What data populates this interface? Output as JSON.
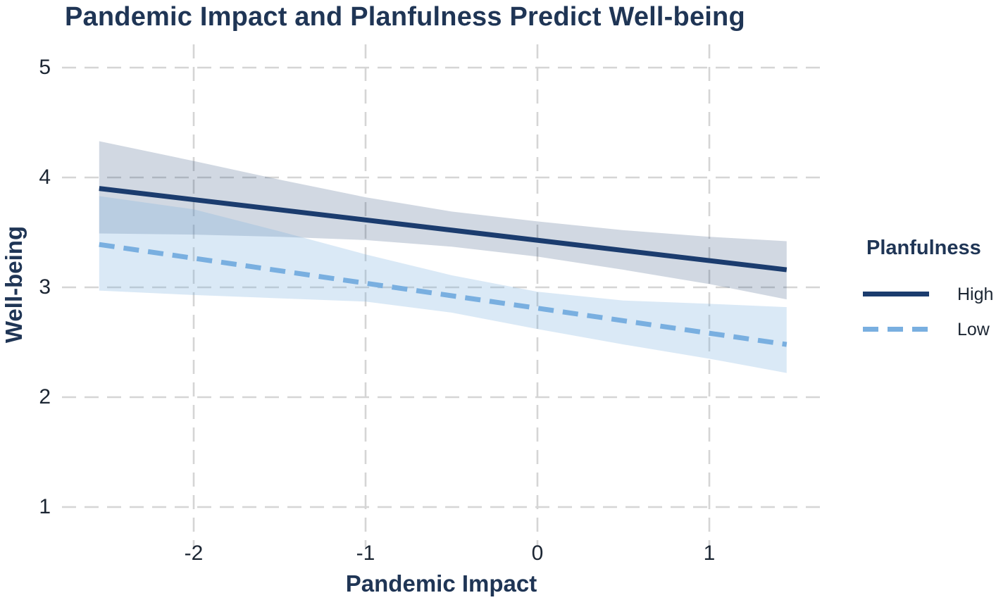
{
  "chart_data": {
    "type": "line",
    "title": "Pandemic Impact and Planfulness Predict Well-being",
    "xlabel": "Pandemic Impact",
    "ylabel": "Well-being",
    "x_ticks": [
      -2,
      -1,
      0,
      1
    ],
    "y_ticks": [
      1,
      2,
      3,
      4,
      5
    ],
    "xlim": [
      -2.77,
      1.65
    ],
    "ylim": [
      0.63,
      5.21
    ],
    "grid": "dashed-both-axes",
    "legend": {
      "title": "Planfulness",
      "position": "right",
      "entries": [
        {
          "label": "High",
          "style": "solid",
          "color": "#1b3c6e"
        },
        {
          "label": "Low",
          "style": "dashed",
          "color": "#79afe0"
        }
      ]
    },
    "series": [
      {
        "name": "High",
        "style": "solid",
        "color": "#1b3c6e",
        "x": [
          -2.55,
          1.45
        ],
        "y": [
          3.9,
          3.16
        ],
        "ci": {
          "fill": "rgba(27,60,110,0.20)",
          "x": [
            -2.55,
            -2,
            -1.5,
            -1,
            -0.5,
            0,
            0.5,
            1,
            1.45
          ],
          "upper": [
            4.33,
            4.15,
            3.98,
            3.82,
            3.69,
            3.6,
            3.52,
            3.46,
            3.42
          ],
          "lower": [
            3.49,
            3.48,
            3.46,
            3.43,
            3.37,
            3.28,
            3.16,
            3.03,
            2.89
          ]
        }
      },
      {
        "name": "Low",
        "style": "dashed",
        "color": "#79afe0",
        "x": [
          -2.55,
          1.45
        ],
        "y": [
          3.39,
          2.48
        ],
        "ci": {
          "fill": "rgba(121,175,224,0.28)",
          "x": [
            -2.55,
            -2,
            -1.5,
            -1,
            -0.5,
            0,
            0.5,
            1,
            1.45
          ],
          "upper": [
            3.83,
            3.71,
            3.51,
            3.3,
            3.11,
            2.96,
            2.88,
            2.85,
            2.82
          ],
          "lower": [
            2.97,
            2.93,
            2.9,
            2.87,
            2.77,
            2.62,
            2.48,
            2.35,
            2.22
          ]
        }
      }
    ]
  },
  "colors": {
    "title": "#1f3555",
    "axis_label": "#1f3555",
    "tick_label": "#1c2633",
    "grid": "#d5d5d5",
    "background": "#ffffff"
  }
}
